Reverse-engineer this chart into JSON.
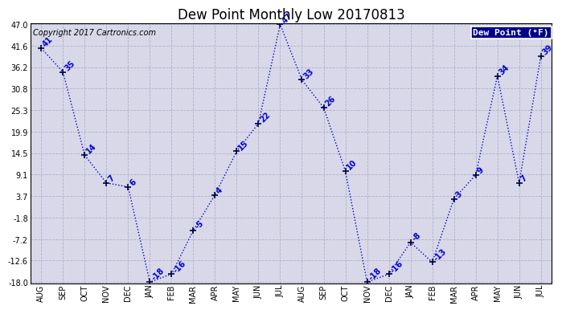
{
  "title": "Dew Point Monthly Low 20170813",
  "copyright": "Copyright 2017 Cartronics.com",
  "legend_label": "Dew Point (°F)",
  "x_labels": [
    "AUG",
    "SEP",
    "OCT",
    "NOV",
    "DEC",
    "JAN",
    "FEB",
    "MAR",
    "APR",
    "MAY",
    "JUN",
    "JUL",
    "AUG",
    "SEP",
    "OCT",
    "NOV",
    "DEC",
    "JAN",
    "FEB",
    "MAR",
    "APR",
    "MAY",
    "JUN",
    "JUL"
  ],
  "y_values": [
    41,
    35,
    14,
    7,
    6,
    -18,
    -16,
    -5,
    4,
    15,
    22,
    47,
    33,
    26,
    10,
    -18,
    -16,
    -8,
    -13,
    3,
    9,
    34,
    7,
    39
  ],
  "y_labels": [
    47.0,
    41.6,
    36.2,
    30.8,
    25.3,
    19.9,
    14.5,
    9.1,
    3.7,
    -1.8,
    -7.2,
    -12.6,
    -18.0
  ],
  "line_color": "#0000cc",
  "marker_color": "#000044",
  "plot_bg_color": "#d8d8e8",
  "fig_bg_color": "#ffffff",
  "legend_bg": "#00008b",
  "legend_text_color": "#ffffff",
  "title_fontsize": 12,
  "annot_fontsize": 7,
  "tick_fontsize": 7,
  "copyright_fontsize": 7
}
